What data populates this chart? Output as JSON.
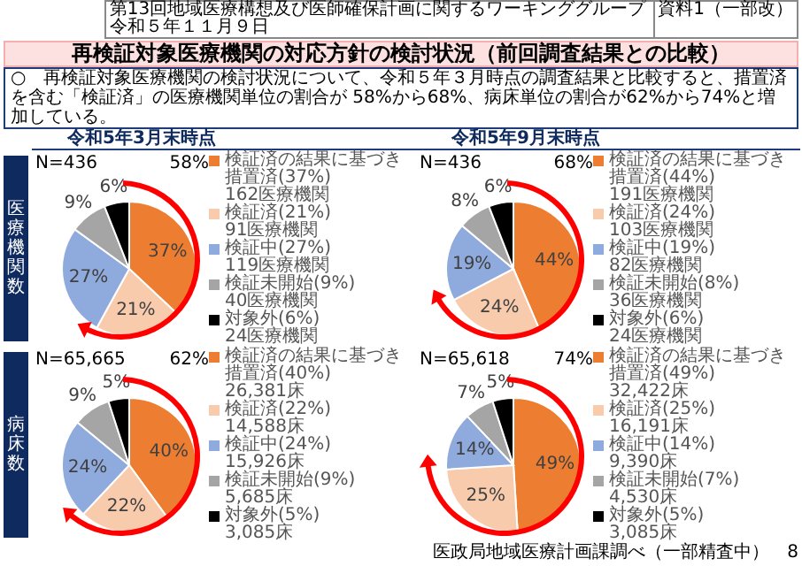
{
  "chart_data": [
    {
      "type": "other",
      "title": "再検証対象医療機関の対応方針の検討状況（前回調査結果との比較）",
      "subtitle": "○　再検証対象医療機関の検討状況について、令和５年３月時点の調査結果と比較すると、措置済を含む「検証済」の医療機関単位の割合が 58%から68%、病床単位の割合が62%から74%と増加している。",
      "annotations": [
        "第13回地域医療構想及び医師確保計画に関するワーキンググループ",
        "令和５年１１月９日",
        "資料1（一部改）",
        "医政局地域医療計画課調べ（一部精査中）",
        "8"
      ]
    },
    {
      "type": "pie",
      "title": "令和5年3月末時点",
      "ylabel": "医療機関数",
      "categories": [
        "検証済の結果に基づき措置済(37%)\n162医療機関",
        "検証済(21%)\n91医療機関",
        "検証中(27%)\n119医療機関",
        "検証未開始(9%)\n40医療機関",
        "対象外(6%)\n24医療機関"
      ],
      "values": [
        37,
        21,
        27,
        9,
        6
      ],
      "value_labels": [
        "37%",
        "21%",
        "27%",
        "9%",
        "6%"
      ],
      "colors": [
        "#ed7d31",
        "#f8cbad",
        "#8faadc",
        "#a5a5a5",
        "#000000"
      ],
      "legend": "right",
      "annotations": [
        "N=436",
        "58%"
      ]
    },
    {
      "type": "pie",
      "title": "令和5年9月末時点",
      "categories": [
        "検証済の結果に基づき措置済(44%)\n191医療機関",
        "検証済(24%)\n103医療機関",
        "検証中(19%)\n82医療機関",
        "検証未開始(8%)\n36医療機関",
        "対象外(6%)\n24医療機関"
      ],
      "values": [
        44,
        24,
        19,
        8,
        6
      ],
      "value_labels": [
        "44%",
        "24%",
        "19%",
        "8%",
        "6%"
      ],
      "colors": [
        "#ed7d31",
        "#f8cbad",
        "#8faadc",
        "#a5a5a5",
        "#000000"
      ],
      "legend": "right",
      "annotations": [
        "N=436",
        "68%"
      ]
    },
    {
      "type": "pie",
      "ylabel": "病床数",
      "categories": [
        "検証済の結果に基づき措置済(40%)\n26,381床",
        "検証済(22%)\n14,588床",
        "検証中(24%)\n15,926床",
        "検証未開始(9%)\n5,685床",
        "対象外(5%)\n3,085床"
      ],
      "values": [
        40,
        22,
        24,
        9,
        5
      ],
      "value_labels": [
        "40%",
        "22%",
        "24%",
        "9%",
        "5%"
      ],
      "colors": [
        "#ed7d31",
        "#f8cbad",
        "#8faadc",
        "#a5a5a5",
        "#000000"
      ],
      "legend": "right",
      "annotations": [
        "N=65,665",
        "62%"
      ]
    },
    {
      "type": "pie",
      "categories": [
        "検証済の結果に基づき措置済(49%)\n32,422床",
        "検証済(25%)\n16,191床",
        "検証中(14%)\n9,390床",
        "検証未開始(7%)\n4,530床",
        "対象外(5%)\n3,085床"
      ],
      "values": [
        49,
        25,
        14,
        7,
        5
      ],
      "value_labels": [
        "49%",
        "25%",
        "14%",
        "7%",
        "5%"
      ],
      "colors": [
        "#ed7d31",
        "#f8cbad",
        "#8faadc",
        "#a5a5a5",
        "#000000"
      ],
      "legend": "right",
      "annotations": [
        "N=65,618",
        "74%"
      ]
    }
  ]
}
